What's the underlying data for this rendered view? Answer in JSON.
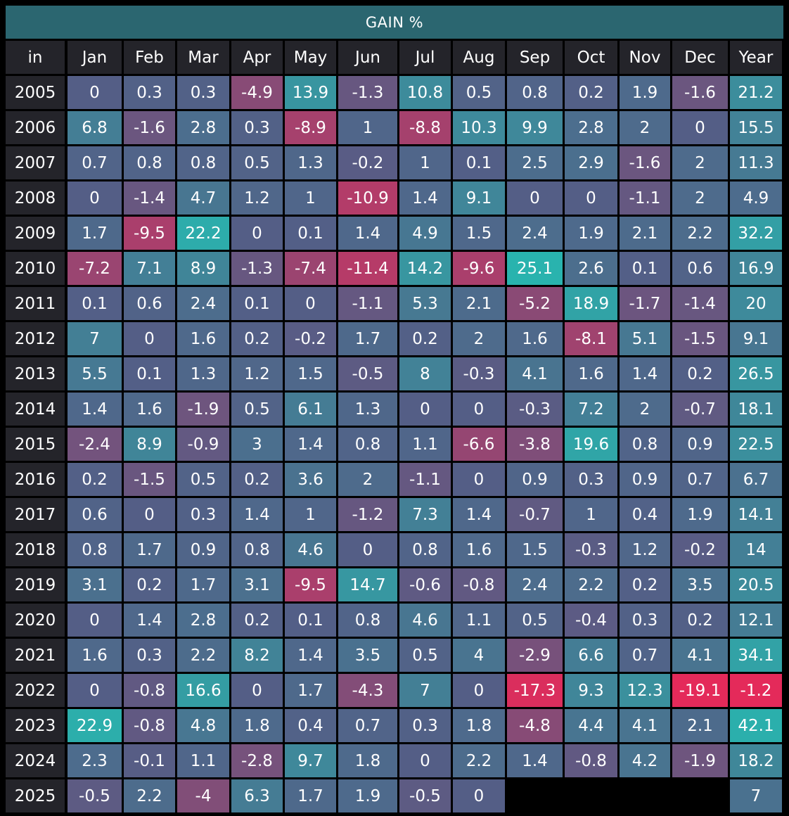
{
  "chart_data": {
    "type": "heatmap",
    "title": "GAIN %",
    "corner_label": "in",
    "columns": [
      "Jan",
      "Feb",
      "Mar",
      "Apr",
      "May",
      "Jun",
      "Jul",
      "Aug",
      "Sep",
      "Oct",
      "Nov",
      "Dec",
      "Year"
    ],
    "rows": [
      {
        "year": "2005",
        "values": [
          "0",
          "0.3",
          "0.3",
          "-4.9",
          "13.9",
          "-1.3",
          "10.8",
          "0.5",
          "0.8",
          "0.2",
          "1.9",
          "-1.6",
          "21.2"
        ]
      },
      {
        "year": "2006",
        "values": [
          "6.8",
          "-1.6",
          "2.8",
          "0.3",
          "-8.9",
          "1",
          "-8.8",
          "10.3",
          "9.9",
          "2.8",
          "2",
          "0",
          "15.5"
        ]
      },
      {
        "year": "2007",
        "values": [
          "0.7",
          "0.8",
          "0.8",
          "0.5",
          "1.3",
          "-0.2",
          "1",
          "0.1",
          "2.5",
          "2.9",
          "-1.6",
          "2",
          "11.3"
        ]
      },
      {
        "year": "2008",
        "values": [
          "0",
          "-1.4",
          "4.7",
          "1.2",
          "1",
          "-10.9",
          "1.4",
          "9.1",
          "0",
          "0",
          "-1.1",
          "2",
          "4.9"
        ]
      },
      {
        "year": "2009",
        "values": [
          "1.7",
          "-9.5",
          "22.2",
          "0",
          "0.1",
          "1.4",
          "4.9",
          "1.5",
          "2.4",
          "1.9",
          "2.1",
          "2.2",
          "32.2"
        ]
      },
      {
        "year": "2010",
        "values": [
          "-7.2",
          "7.1",
          "8.9",
          "-1.3",
          "-7.4",
          "-11.4",
          "14.2",
          "-9.6",
          "25.1",
          "2.6",
          "0.1",
          "0.6",
          "16.9"
        ]
      },
      {
        "year": "2011",
        "values": [
          "0.1",
          "0.6",
          "2.4",
          "0.1",
          "0",
          "-1.1",
          "5.3",
          "2.1",
          "-5.2",
          "18.9",
          "-1.7",
          "-1.4",
          "20"
        ]
      },
      {
        "year": "2012",
        "values": [
          "7",
          "0",
          "1.6",
          "0.2",
          "-0.2",
          "1.7",
          "0.2",
          "2",
          "1.6",
          "-8.1",
          "5.1",
          "-1.5",
          "9.1"
        ]
      },
      {
        "year": "2013",
        "values": [
          "5.5",
          "0.1",
          "1.3",
          "1.2",
          "1.5",
          "-0.5",
          "8",
          "-0.3",
          "4.1",
          "1.6",
          "1.4",
          "0.2",
          "26.5"
        ]
      },
      {
        "year": "2014",
        "values": [
          "1.4",
          "1.6",
          "-1.9",
          "0.5",
          "6.1",
          "1.3",
          "0",
          "0",
          "-0.3",
          "7.2",
          "2",
          "-0.7",
          "18.1"
        ]
      },
      {
        "year": "2015",
        "values": [
          "-2.4",
          "8.9",
          "-0.9",
          "3",
          "1.4",
          "0.8",
          "1.1",
          "-6.6",
          "-3.8",
          "19.6",
          "0.8",
          "0.9",
          "22.5"
        ]
      },
      {
        "year": "2016",
        "values": [
          "0.2",
          "-1.5",
          "0.5",
          "0.2",
          "3.6",
          "2",
          "-1.1",
          "0",
          "0.9",
          "0.3",
          "0.9",
          "0.7",
          "6.7"
        ]
      },
      {
        "year": "2017",
        "values": [
          "0.6",
          "0",
          "0.3",
          "1.4",
          "1",
          "-1.2",
          "7.3",
          "1.4",
          "-0.7",
          "1",
          "0.4",
          "1.9",
          "14.1"
        ]
      },
      {
        "year": "2018",
        "values": [
          "0.8",
          "1.7",
          "0.9",
          "0.8",
          "4.6",
          "0",
          "0.8",
          "1.6",
          "1.5",
          "-0.3",
          "1.2",
          "-0.2",
          "14"
        ]
      },
      {
        "year": "2019",
        "values": [
          "3.1",
          "0.2",
          "1.7",
          "3.1",
          "-9.5",
          "14.7",
          "-0.6",
          "-0.8",
          "2.4",
          "2.2",
          "0.2",
          "3.5",
          "20.5"
        ]
      },
      {
        "year": "2020",
        "values": [
          "0",
          "1.4",
          "2.8",
          "0.2",
          "0.1",
          "0.8",
          "4.6",
          "1.1",
          "0.5",
          "-0.4",
          "0.3",
          "0.2",
          "12.1"
        ]
      },
      {
        "year": "2021",
        "values": [
          "1.6",
          "0.3",
          "2.2",
          "8.2",
          "1.4",
          "3.5",
          "0.5",
          "4",
          "-2.9",
          "6.6",
          "0.7",
          "4.1",
          "34.1"
        ]
      },
      {
        "year": "2022",
        "values": [
          "0",
          "-0.8",
          "16.6",
          "0",
          "1.7",
          "-4.3",
          "7",
          "0",
          "-17.3",
          "9.3",
          "12.3",
          "-19.1",
          "-1.2"
        ]
      },
      {
        "year": "2023",
        "values": [
          "22.9",
          "-0.8",
          "4.8",
          "1.8",
          "0.4",
          "0.7",
          "0.3",
          "1.8",
          "-4.8",
          "4.4",
          "4.1",
          "2.1",
          "42.1"
        ]
      },
      {
        "year": "2024",
        "values": [
          "2.3",
          "-0.1",
          "1.1",
          "-2.8",
          "9.7",
          "1.8",
          "0",
          "2.2",
          "1.4",
          "-0.8",
          "4.2",
          "-1.9",
          "18.2"
        ]
      },
      {
        "year": "2025",
        "values": [
          "-0.5",
          "2.2",
          "-4",
          "6.3",
          "1.7",
          "1.9",
          "-0.5",
          "0",
          "",
          "",
          "",
          "",
          "7"
        ]
      }
    ],
    "colors": {
      "neutral": "#545e86",
      "positive_max": "#29b3ae",
      "negative_max": "#e42a5a",
      "header_bg": "#24242a",
      "title_bg": "#2b6670",
      "text": "#ffffff"
    }
  }
}
